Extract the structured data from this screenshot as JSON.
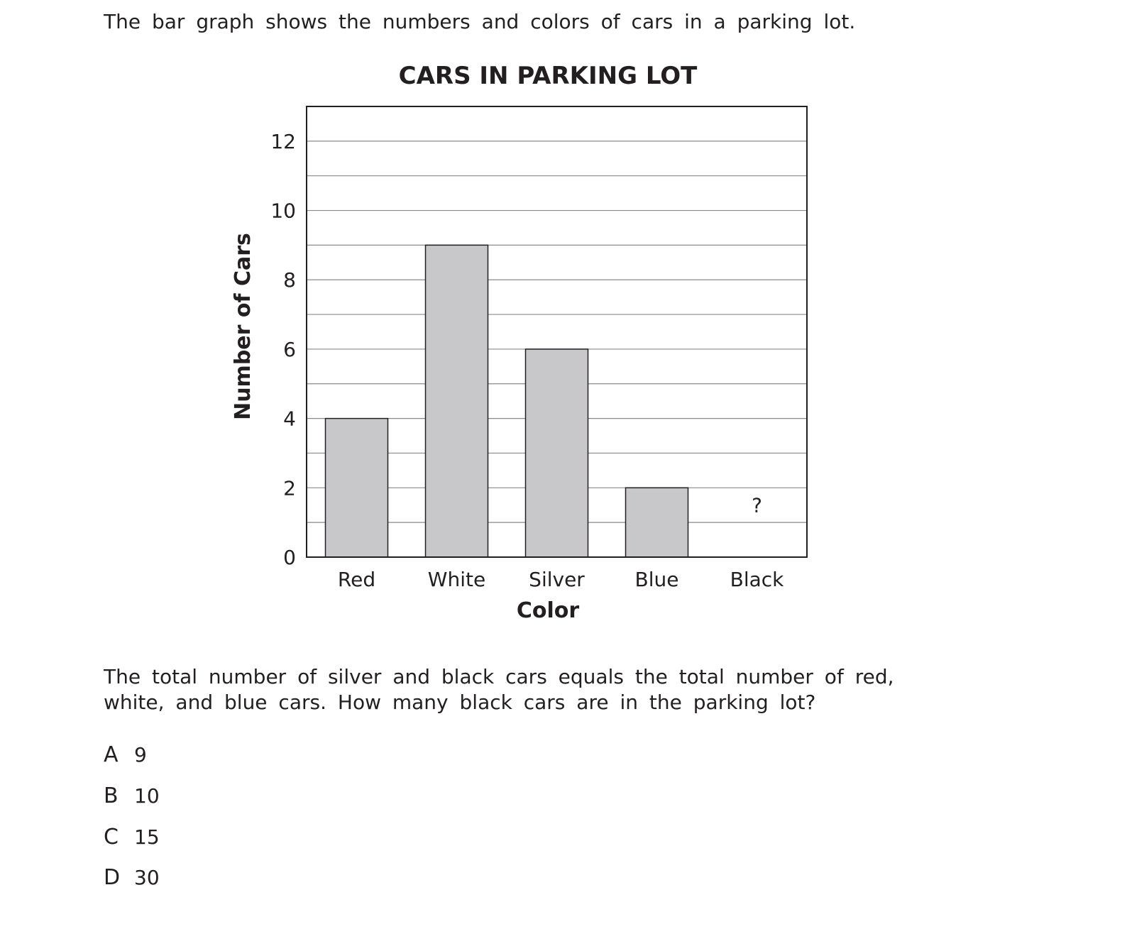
{
  "intro_text": "The bar graph shows the numbers and colors of cars in a parking lot.",
  "chart_data": {
    "type": "bar",
    "title": "CARS IN PARKING LOT",
    "xlabel": "Color",
    "ylabel": "Number of Cars",
    "categories": [
      "Red",
      "White",
      "Silver",
      "Blue",
      "Black"
    ],
    "values": [
      4,
      9,
      6,
      2,
      null
    ],
    "unknown_label": "?",
    "ylim": [
      0,
      13
    ],
    "yticks": [
      0,
      2,
      4,
      6,
      8,
      10,
      12
    ],
    "grid_step": 1,
    "grid": true,
    "bar_color": "#c8c8ca",
    "border_color": "#231f20"
  },
  "question": "The total number of silver and black cars equals the total number of red, white, and blue cars. How many black cars are in the parking lot?",
  "choices": [
    {
      "letter": "A",
      "value": "9"
    },
    {
      "letter": "B",
      "value": "10"
    },
    {
      "letter": "C",
      "value": "15"
    },
    {
      "letter": "D",
      "value": "30"
    }
  ]
}
